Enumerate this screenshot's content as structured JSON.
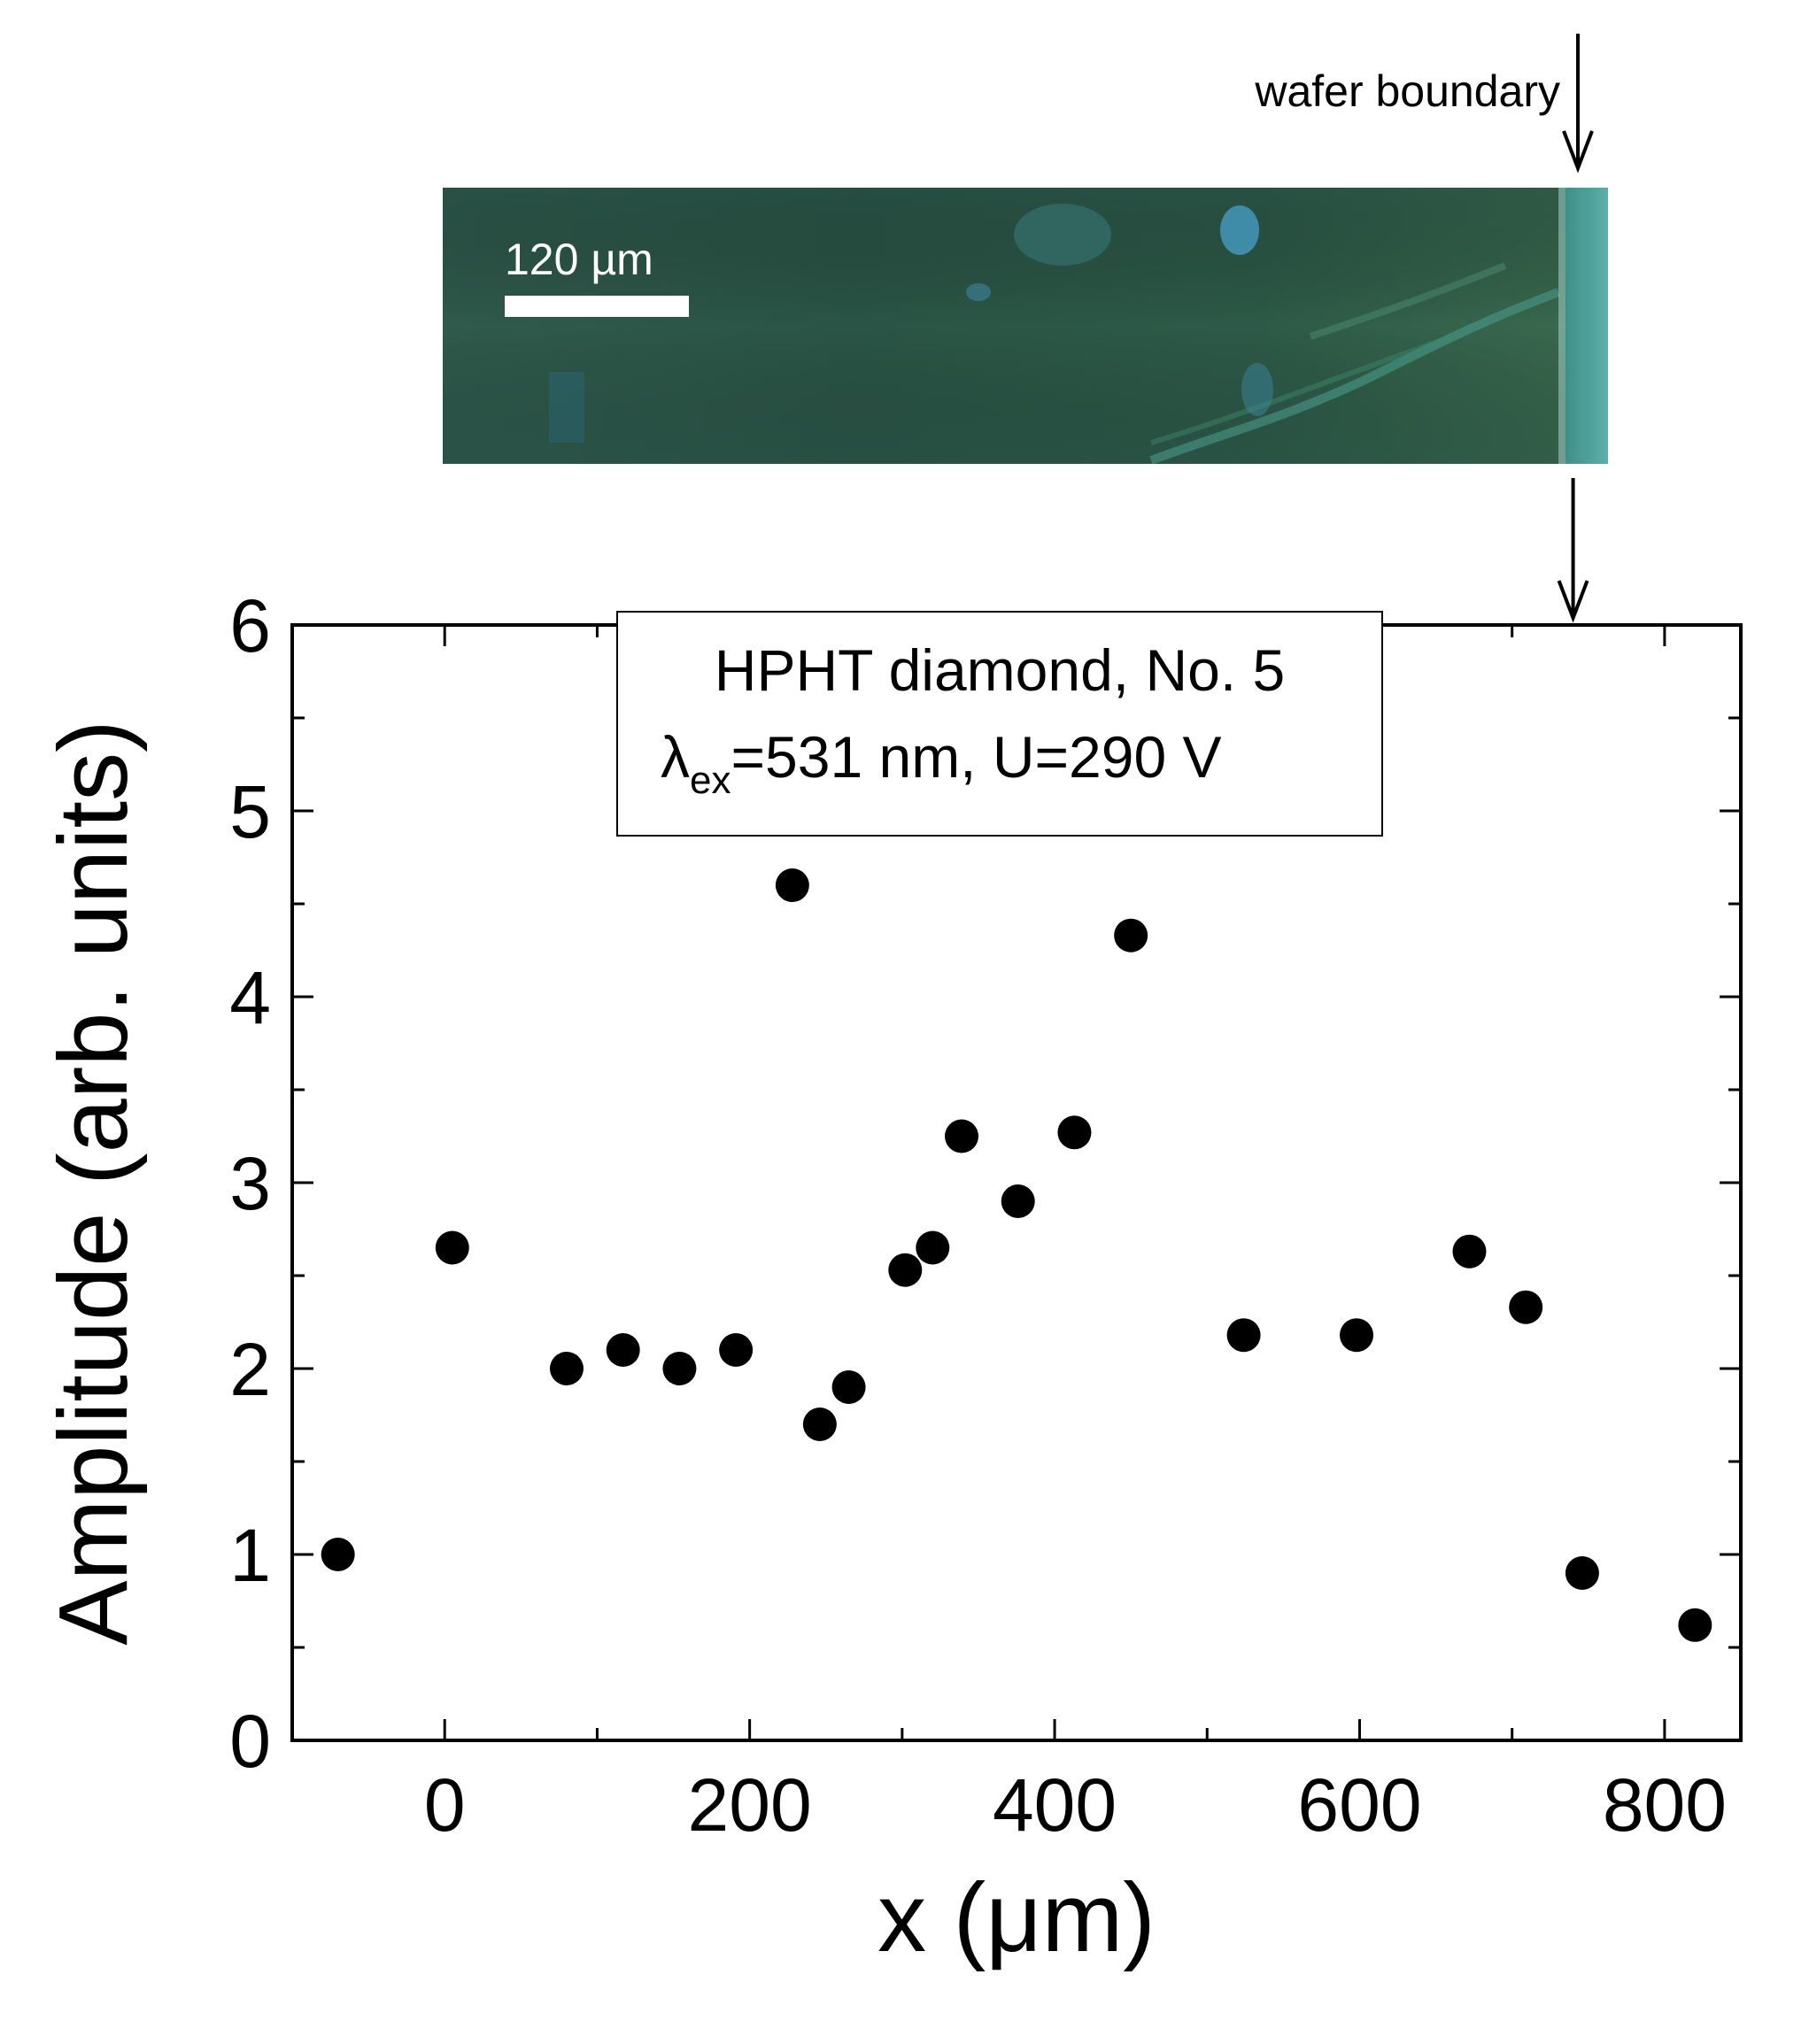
{
  "annotation": {
    "arrow_label": "wafer boundary",
    "scalebar_label": "120 µm"
  },
  "legend_box": {
    "line1": "HPHT diamond, No. 5",
    "line2_symbol": "λ",
    "line2_subscript": "ex",
    "line2_rest": "=531 nm, U=290 V"
  },
  "colors": {
    "marker": "#000000",
    "image_base": "#2f5a4a",
    "image_edge": "#4fa8a0",
    "image_highlight": "#4aa6d6"
  },
  "chart_data": {
    "type": "scatter",
    "xlabel": "x (μm)",
    "ylabel": "Amplitude (arb. units)",
    "xlim": [
      -100,
      850
    ],
    "ylim": [
      0,
      6
    ],
    "xticks": [
      0,
      200,
      400,
      600,
      800
    ],
    "yticks": [
      0,
      1,
      2,
      3,
      4,
      5,
      6
    ],
    "x_minor_step": 100,
    "y_minor_step": 0.5,
    "grid": false,
    "points": [
      {
        "x": -70,
        "y": 1.0
      },
      {
        "x": 5,
        "y": 2.65
      },
      {
        "x": 80,
        "y": 2.0
      },
      {
        "x": 117,
        "y": 2.1
      },
      {
        "x": 154,
        "y": 2.0
      },
      {
        "x": 191,
        "y": 2.1
      },
      {
        "x": 228,
        "y": 4.6
      },
      {
        "x": 246,
        "y": 1.7
      },
      {
        "x": 265,
        "y": 1.9
      },
      {
        "x": 302,
        "y": 2.53
      },
      {
        "x": 320,
        "y": 2.65
      },
      {
        "x": 339,
        "y": 3.25
      },
      {
        "x": 376,
        "y": 2.9
      },
      {
        "x": 413,
        "y": 3.27
      },
      {
        "x": 450,
        "y": 4.33
      },
      {
        "x": 524,
        "y": 2.18
      },
      {
        "x": 598,
        "y": 2.18
      },
      {
        "x": 672,
        "y": 2.63
      },
      {
        "x": 709,
        "y": 2.33
      },
      {
        "x": 746,
        "y": 0.9
      },
      {
        "x": 820,
        "y": 0.62
      }
    ],
    "boundary_x": 740
  }
}
